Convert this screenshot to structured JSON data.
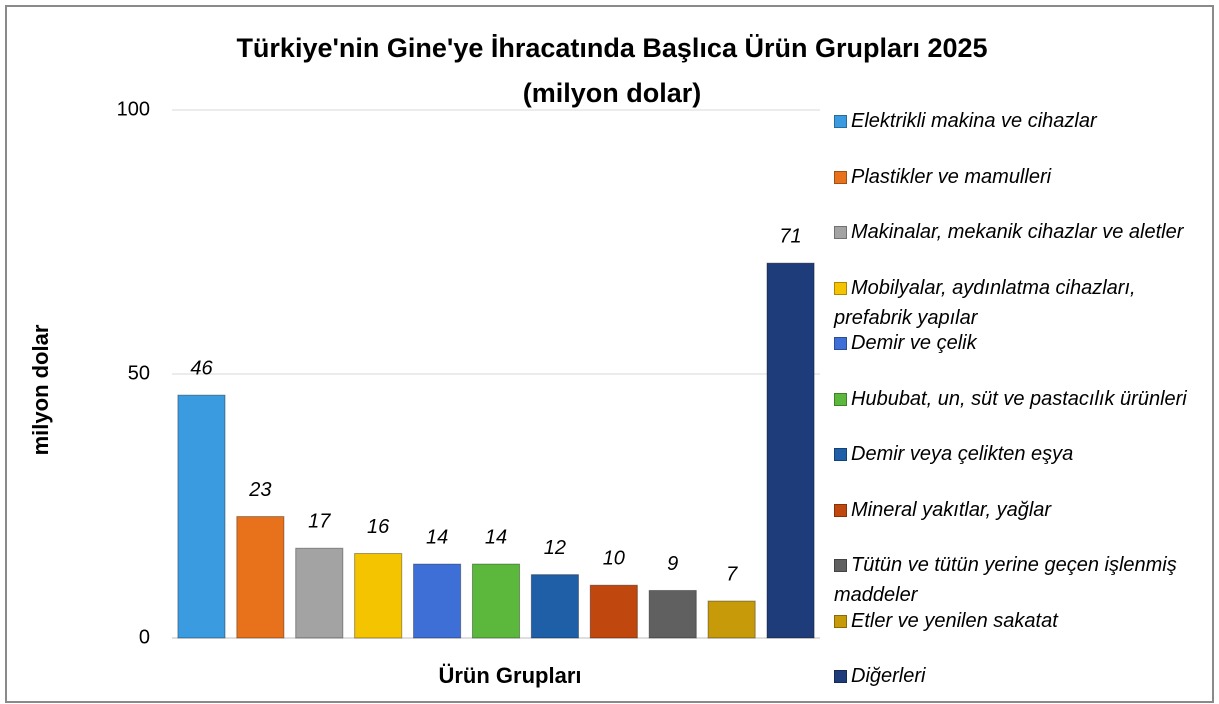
{
  "chart_data": {
    "type": "bar",
    "title": "Türkiye'nin Gine'ye İhracatında Başlıca Ürün Grupları 2025",
    "subtitle": "(milyon dolar)",
    "y_label": "milyon dolar",
    "x_label": "Ürün Grupları",
    "ylim": [
      0,
      100
    ],
    "yticks": [
      0,
      50,
      100
    ],
    "grid": true,
    "legend": "right",
    "series": [
      {
        "name": "Elektrikli makina ve cihazlar",
        "color": "#3a9be0",
        "values": [
          46
        ]
      },
      {
        "name": "Plastikler ve mamulleri",
        "color": "#e8711c",
        "values": [
          23
        ]
      },
      {
        "name": "Makinalar, mekanik cihazlar ve aletler",
        "color": "#a3a3a3",
        "values": [
          17
        ]
      },
      {
        "name": "Mobilyalar, aydınlatma cihazları, prefabrik yapılar",
        "color": "#f5c400",
        "values": [
          16
        ]
      },
      {
        "name": "Demir ve çelik",
        "color": "#3d6fd6",
        "values": [
          14
        ]
      },
      {
        "name": "Hububat, un, süt ve pastacılık ürünleri",
        "color": "#5cb83c",
        "values": [
          14
        ]
      },
      {
        "name": "Demir veya çelikten eşya",
        "color": "#1e5fa8",
        "values": [
          12
        ]
      },
      {
        "name": "Mineral yakıtlar, yağlar",
        "color": "#c0470e",
        "values": [
          10
        ]
      },
      {
        "name": "Tütün ve tütün yerine geçen işlenmiş maddeler",
        "color": "#606060",
        "values": [
          9
        ]
      },
      {
        "name": "Etler ve yenilen sakatat",
        "color": "#c79a0a",
        "values": [
          7
        ]
      },
      {
        "name": "Diğerleri",
        "color": "#1f3c7a",
        "values": [
          71
        ]
      }
    ]
  }
}
